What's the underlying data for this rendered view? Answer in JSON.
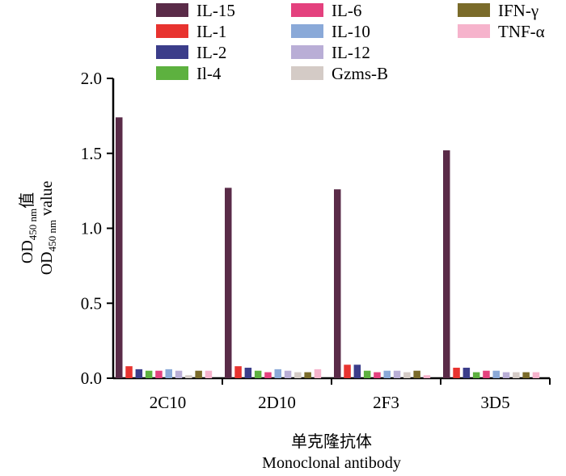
{
  "chart_data": {
    "type": "bar",
    "categories": [
      "2C10",
      "2D10",
      "2F3",
      "3D5"
    ],
    "series": [
      {
        "name": "IL-15",
        "color": "#5a2b48",
        "values": [
          1.74,
          1.27,
          1.26,
          1.52
        ]
      },
      {
        "name": "IL-1",
        "color": "#e8332f",
        "values": [
          0.08,
          0.08,
          0.09,
          0.07
        ]
      },
      {
        "name": "IL-2",
        "color": "#3b3d8a",
        "values": [
          0.06,
          0.07,
          0.09,
          0.07
        ]
      },
      {
        "name": "Il-4",
        "color": "#5db13f",
        "values": [
          0.05,
          0.05,
          0.05,
          0.04
        ]
      },
      {
        "name": "IL-6",
        "color": "#e4417e",
        "values": [
          0.05,
          0.04,
          0.04,
          0.05
        ]
      },
      {
        "name": "IL-10",
        "color": "#8aa9d8",
        "values": [
          0.06,
          0.06,
          0.05,
          0.05
        ]
      },
      {
        "name": "IL-12",
        "color": "#b9aed6",
        "values": [
          0.05,
          0.05,
          0.05,
          0.04
        ]
      },
      {
        "name": "Gzms-B",
        "color": "#d4cbc6",
        "values": [
          0.02,
          0.04,
          0.04,
          0.04
        ]
      },
      {
        "name": "IFN-γ",
        "color": "#7a6b2a",
        "values": [
          0.05,
          0.04,
          0.05,
          0.04
        ]
      },
      {
        "name": "TNF-α",
        "color": "#f6b3cc",
        "values": [
          0.05,
          0.06,
          0.02,
          0.04
        ]
      }
    ],
    "ylim": [
      0,
      2.0
    ],
    "yticks": [
      "0.0",
      "0.5",
      "1.0",
      "1.5",
      "2.0"
    ],
    "ylabel": {
      "cn_prefix": "OD",
      "cn_sub": "450 nm",
      "cn_suffix": "值",
      "en_prefix": "OD",
      "en_sub": "450 nm",
      "en_suffix": " value"
    },
    "xlabel_cn": "单克隆抗体",
    "xlabel_en": "Monoclonal antibody",
    "grid": false,
    "legend_position": "top"
  }
}
